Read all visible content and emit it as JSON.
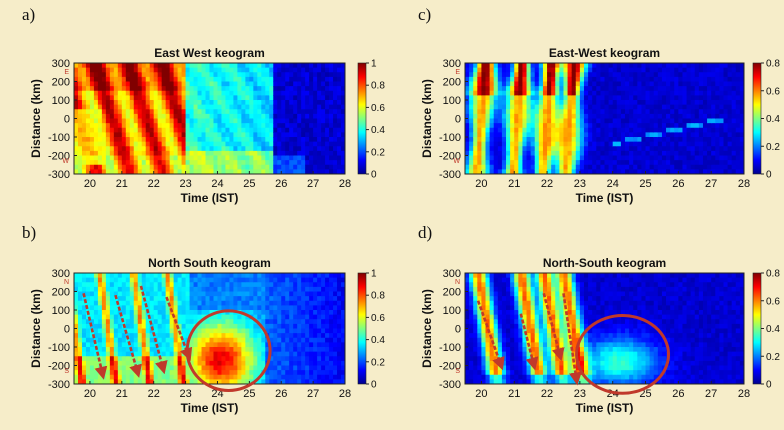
{
  "chart_data": [
    {
      "panel": "a)",
      "type": "heatmap",
      "title": "East West keogram",
      "xlabel": "Time (IST)",
      "ylabel": "Distance (km)",
      "x_ticks": [
        "20",
        "21",
        "22",
        "23",
        "24",
        "25",
        "26",
        "27",
        "28"
      ],
      "y_ticks": [
        "300",
        "200",
        "100",
        "0",
        "-100",
        "-200",
        "-300"
      ],
      "xlim": [
        19.5,
        28
      ],
      "ylim": [
        -300,
        300
      ],
      "colorbar": {
        "min": 0,
        "max": 1,
        "ticks": [
          "1",
          "0.8",
          "0.6",
          "0.4",
          "0.2",
          "0"
        ]
      },
      "direction_labels": [
        "E",
        "W"
      ],
      "colormap": "jet",
      "features": [
        {
          "kind": "band",
          "t0": 19.5,
          "t1": 23.0,
          "value": 0.88
        },
        {
          "kind": "band",
          "t0": 23.0,
          "t1": 25.7,
          "value": 0.4
        },
        {
          "kind": "band",
          "t0": 25.7,
          "t1": 28.0,
          "value": 0.1
        }
      ]
    },
    {
      "panel": "b)",
      "type": "heatmap",
      "title": "North South keogram",
      "xlabel": "Time (IST)",
      "ylabel": "Distance (km)",
      "x_ticks": [
        "20",
        "21",
        "22",
        "23",
        "24",
        "25",
        "26",
        "27",
        "28"
      ],
      "y_ticks": [
        "300",
        "200",
        "100",
        "0",
        "-100",
        "-200",
        "-300"
      ],
      "xlim": [
        19.5,
        28
      ],
      "ylim": [
        -300,
        300
      ],
      "colorbar": {
        "min": 0,
        "max": 1,
        "ticks": [
          "1",
          "0.8",
          "0.6",
          "0.4",
          "0.2",
          "0"
        ]
      },
      "direction_labels": [
        "N",
        "S"
      ],
      "colormap": "jet",
      "arrows": [
        {
          "t_start": 19.8,
          "d_start": 190,
          "t_end": 20.4,
          "d_end": -250
        },
        {
          "t_start": 20.8,
          "d_start": 180,
          "t_end": 21.5,
          "d_end": -240
        },
        {
          "t_start": 21.6,
          "d_start": 230,
          "t_end": 22.3,
          "d_end": -220
        },
        {
          "t_start": 22.4,
          "d_start": 170,
          "t_end": 23.1,
          "d_end": -150
        }
      ],
      "circle": {
        "t_center": 24.35,
        "d_center": -120,
        "t_radius": 1.3,
        "d_radius": 215
      }
    },
    {
      "panel": "c)",
      "type": "heatmap",
      "title": "East-West keogram",
      "xlabel": "Time (IST)",
      "ylabel": "Distance (km)",
      "x_ticks": [
        "20",
        "21",
        "22",
        "23",
        "24",
        "25",
        "26",
        "27",
        "28"
      ],
      "y_ticks": [
        "300",
        "200",
        "100",
        "0",
        "-100",
        "-200",
        "-300"
      ],
      "xlim": [
        19.5,
        28
      ],
      "ylim": [
        -300,
        300
      ],
      "colorbar": {
        "min": 0,
        "max": 0.8,
        "ticks": [
          "0.8",
          "0.6",
          "0.4",
          "0.2",
          "0"
        ]
      },
      "direction_labels": [
        "E",
        "W"
      ],
      "colormap": "jet"
    },
    {
      "panel": "d)",
      "type": "heatmap",
      "title": "North-South keogram",
      "xlabel": "Time (IST)",
      "ylabel": "Distance (km)",
      "x_ticks": [
        "20",
        "21",
        "22",
        "23",
        "24",
        "25",
        "26",
        "27",
        "28"
      ],
      "y_ticks": [
        "300",
        "200",
        "100",
        "0",
        "-100",
        "-200",
        "-300"
      ],
      "xlim": [
        19.5,
        28
      ],
      "ylim": [
        -300,
        300
      ],
      "colorbar": {
        "min": 0,
        "max": 0.8,
        "ticks": [
          "0.8",
          "0.6",
          "0.4",
          "0.2",
          "0"
        ]
      },
      "direction_labels": [
        "N",
        "S"
      ],
      "colormap": "jet",
      "arrows": [
        {
          "t_start": 19.9,
          "d_start": 150,
          "t_end": 20.6,
          "d_end": -200
        },
        {
          "t_start": 21.2,
          "d_start": 80,
          "t_end": 21.6,
          "d_end": -200
        },
        {
          "t_start": 21.9,
          "d_start": 190,
          "t_end": 22.4,
          "d_end": -150
        },
        {
          "t_start": 22.5,
          "d_start": 190,
          "t_end": 22.9,
          "d_end": -280
        }
      ],
      "circle": {
        "t_center": 24.3,
        "d_center": -140,
        "t_radius": 1.4,
        "d_radius": 210
      }
    }
  ]
}
